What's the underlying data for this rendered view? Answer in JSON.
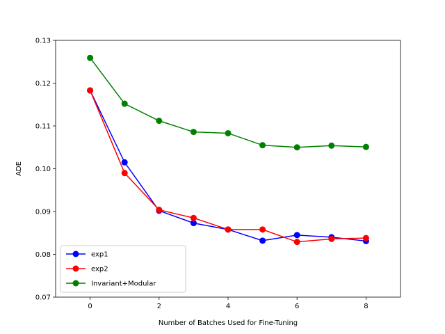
{
  "chart_data": {
    "type": "line",
    "title": "",
    "xlabel": "Number of Batches Used for Fine-Tuning",
    "ylabel": "ADE",
    "xlim": [
      -1,
      9
    ],
    "ylim": [
      0.07,
      0.13
    ],
    "xticks": [
      0,
      2,
      4,
      6,
      8
    ],
    "yticks": [
      0.07,
      0.08,
      0.09,
      0.1,
      0.11,
      0.12,
      0.13
    ],
    "ytick_labels": [
      "0.07",
      "0.08",
      "0.09",
      "0.10",
      "0.11",
      "0.12",
      "0.13"
    ],
    "grid": false,
    "legend_position": "lower-left",
    "x": [
      0,
      1,
      2,
      3,
      4,
      5,
      6,
      7,
      8
    ],
    "series": [
      {
        "name": "exp1",
        "color": "#0000ff",
        "values": [
          0.1183,
          0.1015,
          0.0902,
          0.0873,
          0.0858,
          0.0832,
          0.0845,
          0.084,
          0.0831
        ]
      },
      {
        "name": "exp2",
        "color": "#ff0000",
        "values": [
          0.1183,
          0.099,
          0.0904,
          0.0885,
          0.0858,
          0.0858,
          0.0829,
          0.0836,
          0.0838
        ]
      },
      {
        "name": "Invariant+Modular",
        "color": "#008000",
        "values": [
          0.1259,
          0.1152,
          0.1112,
          0.1086,
          0.1083,
          0.1055,
          0.105,
          0.1054,
          0.1051
        ]
      }
    ]
  }
}
